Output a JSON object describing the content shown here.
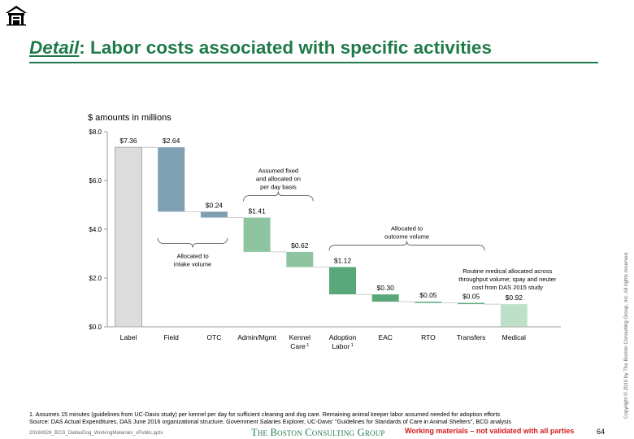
{
  "page": {
    "title_emphasis": "Detail",
    "title_rest": ": Labor costs associated with specific activities",
    "footnote_1": "1. Assumes 15 minutes (guidelines from UC-Davis study) per kennel per day for sufficient cleaning and dog care. Remaining animal keeper labor assumed needed for adoption efforts",
    "source": "Source: DAS Actual Expenditures, DAS June 2016 organizational structure, Government Salaries Explorer, UC-Davis' \"Guidelines for Standards of Care in Animal Shelters\", BCG analysis",
    "filename": "20160826_BCG_DallasDog_WorkingMaterials_vPublic.pptx",
    "logo": "The Boston Consulting Group",
    "working_note": "Working materials – not validated with all parties",
    "page_number": "64",
    "copyright": "Copyright © 2016 by The Boston Consulting Group, Inc. All rights reserved.",
    "icon": "home-icon"
  },
  "chart_data": {
    "type": "bar",
    "subtype": "waterfall",
    "subtitle": "$ amounts in millions",
    "ylim": [
      0,
      8
    ],
    "yticks": [
      0,
      2,
      4,
      6,
      8
    ],
    "ytick_labels": [
      "$0.0",
      "$2.0",
      "$4.0",
      "$6.0",
      "$8.0"
    ],
    "categories": [
      "Label",
      "Field",
      "OTC",
      "Admin/Mgmt",
      "Kennel Care",
      "Adoption Labor",
      "EAC",
      "RTO",
      "Transfers",
      "Medical"
    ],
    "category_superscripts": [
      "",
      "",
      "",
      "",
      "1",
      "1",
      "",
      "",
      "",
      ""
    ],
    "values": [
      7.36,
      2.64,
      0.24,
      1.41,
      0.62,
      1.12,
      0.3,
      0.05,
      0.05,
      0.92
    ],
    "value_labels": [
      "$7.36",
      "$2.64",
      "$0.24",
      "$1.41",
      "$0.62",
      "$1.12",
      "$0.30",
      "$0.05",
      "$0.05",
      "$0.92"
    ],
    "bar_kinds": [
      "total",
      "step",
      "step",
      "step",
      "step",
      "step",
      "step",
      "step",
      "step",
      "end"
    ],
    "colors": [
      "#dcdcdc",
      "#7f9fb3",
      "#7f9fb3",
      "#8fc4a1",
      "#8fc4a1",
      "#5aa87a",
      "#5aa87a",
      "#5aa87a",
      "#5aa87a",
      "#bfe0c8"
    ],
    "grid": false,
    "annotations": [
      {
        "text": "Allocated to\nintake volume",
        "from": 1,
        "to": 2,
        "side": "below"
      },
      {
        "text": "Assumed fixed\nand allocated on\nper day basis",
        "from": 3,
        "to": 4,
        "side": "above"
      },
      {
        "text": "Allocated to\noutcome volume",
        "from": 5,
        "to": 8,
        "side": "above"
      },
      {
        "text": "Routine medical allocated across\nthroughput volume; spay and neuter\ncost from DAS 2015 study",
        "from": 9,
        "to": 9,
        "side": "above"
      }
    ]
  }
}
